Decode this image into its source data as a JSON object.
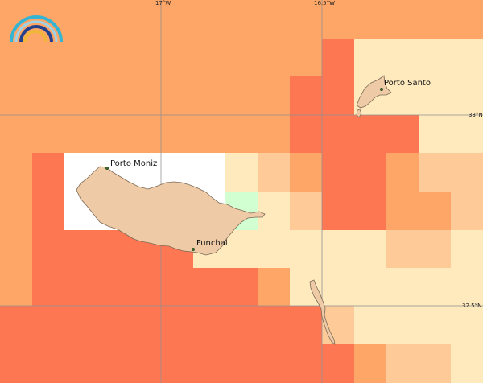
{
  "map": {
    "graticule": {
      "longitudes": [
        "17°W",
        "16.5°W"
      ],
      "latitudes": [
        "33°N",
        "32.5°N"
      ]
    },
    "places": [
      {
        "name": "Porto Moniz"
      },
      {
        "name": "Funchal"
      },
      {
        "name": "Porto Santo"
      }
    ],
    "colors": {
      "ocean_high": "#fea667",
      "ocean_highest": "#fe7753",
      "ocean_mid": "#fecb98",
      "ocean_low": "#feeabd",
      "ocean_green": "#d2ffd2",
      "no_data": "#ffffff",
      "land": "#eecba6"
    },
    "logo_icon": "rainbow-logo-icon"
  }
}
